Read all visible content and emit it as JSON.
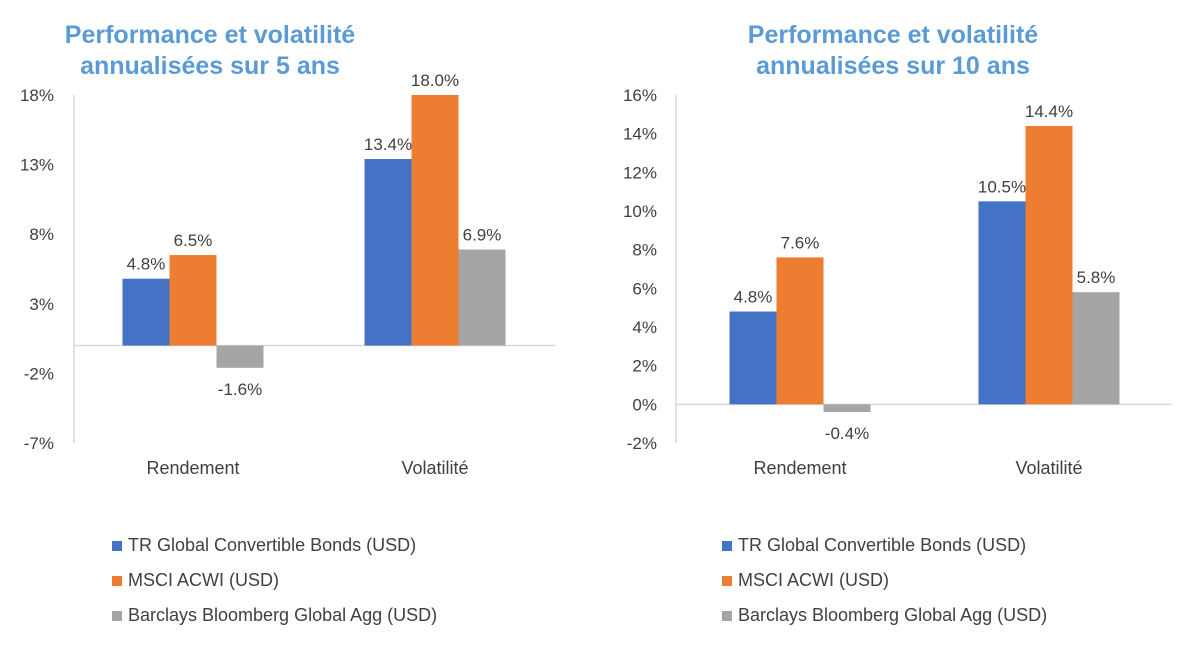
{
  "colors": {
    "series": [
      "#4472c4",
      "#ed7d31",
      "#a5a5a5"
    ],
    "title": "#5b9bd5",
    "axis": "#d9d9d9",
    "text": "#404040"
  },
  "chart_data": [
    {
      "type": "bar",
      "title_lines": [
        "Performance et volatilité",
        "annualisées sur 5 ans"
      ],
      "categories": [
        "Rendement",
        "Volatilité"
      ],
      "series": [
        {
          "name": "TR Global Convertible Bonds (USD)",
          "values": [
            4.8,
            13.4
          ],
          "labels": [
            "4.8%",
            "13.4%"
          ]
        },
        {
          "name": "MSCI ACWI (USD)",
          "values": [
            6.5,
            18.0
          ],
          "labels": [
            "6.5%",
            "18.0%"
          ]
        },
        {
          "name": "Barclays Bloomberg Global Agg (USD)",
          "values": [
            -1.6,
            6.9
          ],
          "labels": [
            "-1.6%",
            "6.9%"
          ]
        }
      ],
      "yticks": [
        18,
        13,
        8,
        3,
        -2,
        -7
      ],
      "ytick_labels": [
        "18%",
        "13%",
        "8%",
        "3%",
        "-2%",
        "-7%"
      ],
      "ylim": [
        -7,
        18
      ],
      "grid": false,
      "legend": "bottom"
    },
    {
      "type": "bar",
      "title_lines": [
        "Performance et volatilité",
        "annualisées sur 10 ans"
      ],
      "categories": [
        "Rendement",
        "Volatilité"
      ],
      "series": [
        {
          "name": "TR Global Convertible Bonds (USD)",
          "values": [
            4.8,
            10.5
          ],
          "labels": [
            "4.8%",
            "10.5%"
          ]
        },
        {
          "name": "MSCI ACWI (USD)",
          "values": [
            7.6,
            14.4
          ],
          "labels": [
            "7.6%",
            "14.4%"
          ]
        },
        {
          "name": "Barclays Bloomberg Global Agg (USD)",
          "values": [
            -0.4,
            5.8
          ],
          "labels": [
            "-0.4%",
            "5.8%"
          ]
        }
      ],
      "yticks": [
        16,
        14,
        12,
        10,
        8,
        6,
        4,
        2,
        0,
        -2
      ],
      "ytick_labels": [
        "16%",
        "14%",
        "12%",
        "10%",
        "8%",
        "6%",
        "4%",
        "2%",
        "0%",
        "-2%"
      ],
      "ylim": [
        -2,
        16
      ],
      "grid": false,
      "legend": "bottom"
    }
  ]
}
